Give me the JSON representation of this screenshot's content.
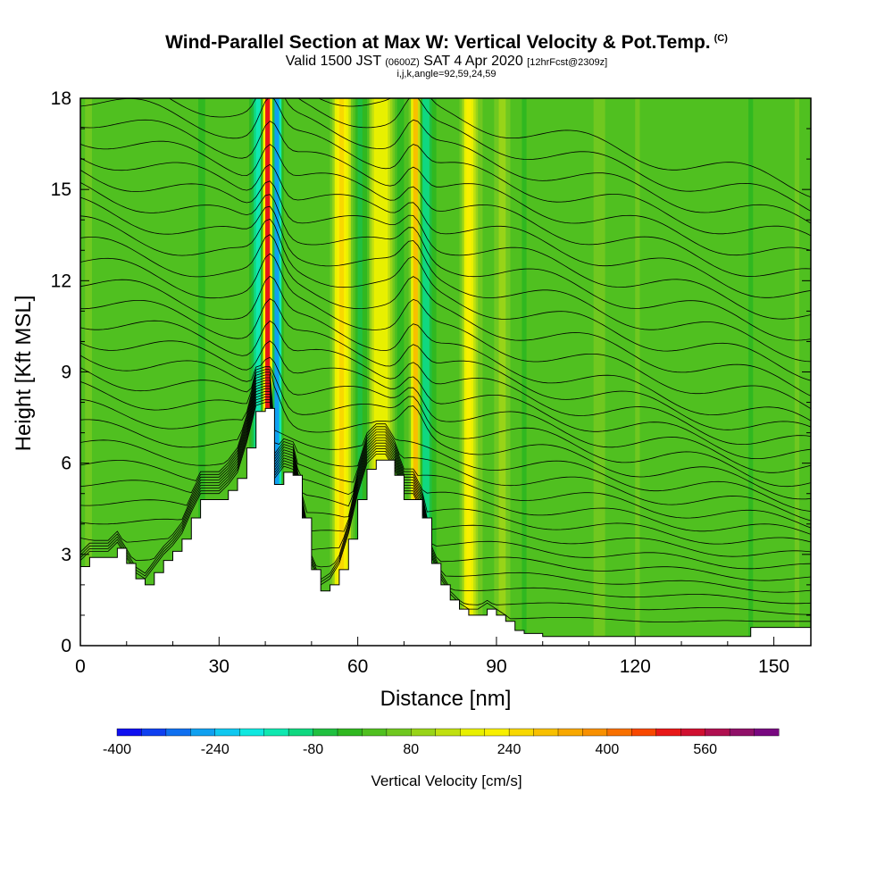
{
  "header": {
    "title": "Wind-Parallel Section at Max W: Vertical Velocity & Pot.Temp.",
    "title_mark": "(C)",
    "valid_prefix": "Valid 1500 JST",
    "valid_utc": "(0600Z)",
    "valid_date": "SAT 4 Apr 2020",
    "forecast_note": "[12hrFcst@2309z]",
    "params": "i,j,k,angle=92,59,24,59"
  },
  "chart_data": {
    "type": "heatmap",
    "xlabel": "Distance [nm]",
    "ylabel": "Height [Kft MSL]",
    "xlim": [
      0,
      158
    ],
    "ylim": [
      0,
      18
    ],
    "x_ticks": [
      0,
      30,
      60,
      90,
      120,
      150
    ],
    "y_ticks": [
      0,
      3,
      6,
      9,
      12,
      15,
      18
    ],
    "terrain": {
      "x": [
        0,
        2,
        4,
        6,
        8,
        10,
        12,
        14,
        16,
        18,
        20,
        22,
        24,
        26,
        28,
        30,
        32,
        34,
        36,
        38,
        40,
        41,
        42,
        44,
        46,
        48,
        50,
        52,
        54,
        56,
        58,
        60,
        62,
        64,
        66,
        68,
        70,
        72,
        74,
        76,
        78,
        80,
        82,
        84,
        86,
        88,
        90,
        92,
        94,
        96,
        98,
        100,
        105,
        110,
        115,
        120,
        125,
        130,
        135,
        140,
        145,
        150,
        155,
        158
      ],
      "height": [
        2.6,
        2.9,
        2.9,
        2.9,
        3.2,
        2.7,
        2.2,
        2.0,
        2.4,
        2.8,
        3.1,
        3.5,
        4.2,
        4.8,
        4.8,
        4.8,
        5.1,
        5.5,
        6.5,
        7.7,
        7.8,
        7.8,
        5.3,
        5.7,
        5.6,
        4.2,
        2.5,
        1.8,
        2.0,
        2.5,
        3.5,
        4.8,
        5.8,
        6.1,
        6.1,
        5.6,
        4.8,
        4.8,
        4.2,
        2.7,
        2.0,
        1.5,
        1.2,
        1.0,
        1.0,
        1.2,
        1.0,
        0.8,
        0.5,
        0.4,
        0.4,
        0.3,
        0.3,
        0.3,
        0.3,
        0.3,
        0.3,
        0.3,
        0.3,
        0.3,
        0.6,
        0.6,
        0.6,
        0.6
      ]
    },
    "w_features": [
      {
        "x": 40.5,
        "w": 560
      },
      {
        "x": 42.5,
        "w": -320
      },
      {
        "x": 38.5,
        "w": -160
      },
      {
        "x": 56,
        "w": 200
      },
      {
        "x": 58,
        "w": 120
      },
      {
        "x": 60,
        "w": -80
      },
      {
        "x": 64,
        "w": 160
      },
      {
        "x": 66.5,
        "w": 140
      },
      {
        "x": 69,
        "w": -60
      },
      {
        "x": 72.5,
        "w": 320
      },
      {
        "x": 74.5,
        "w": -120
      },
      {
        "x": 84,
        "w": 200
      },
      {
        "x": 91,
        "w": 80
      },
      {
        "x": 112,
        "w": 60
      }
    ],
    "theta_contours": {
      "interval": 0.6,
      "min_height": 1.2,
      "max_height": 18
    },
    "colorbar": {
      "title": "Vertical Velocity [cm/s]",
      "labels": [
        "-400",
        "-240",
        "-80",
        "80",
        "240",
        "400",
        "560"
      ],
      "levels": [
        -400,
        -360,
        -320,
        -280,
        -240,
        -200,
        -160,
        -120,
        -80,
        -40,
        0,
        40,
        80,
        120,
        160,
        200,
        240,
        280,
        320,
        360,
        400,
        440,
        480,
        520,
        560,
        600,
        640,
        680
      ],
      "colors": [
        "#1010f0",
        "#1040f0",
        "#1070f0",
        "#10a0f0",
        "#10c8f0",
        "#10e8e0",
        "#10e8b0",
        "#10d880",
        "#20c040",
        "#30b820",
        "#50c020",
        "#70c820",
        "#98d418",
        "#c0e010",
        "#e8f000",
        "#f8f000",
        "#f8d800",
        "#f8c000",
        "#f8a800",
        "#f89000",
        "#f87000",
        "#f84800",
        "#e81818",
        "#d01030",
        "#b01050",
        "#901068",
        "#780880"
      ]
    }
  }
}
